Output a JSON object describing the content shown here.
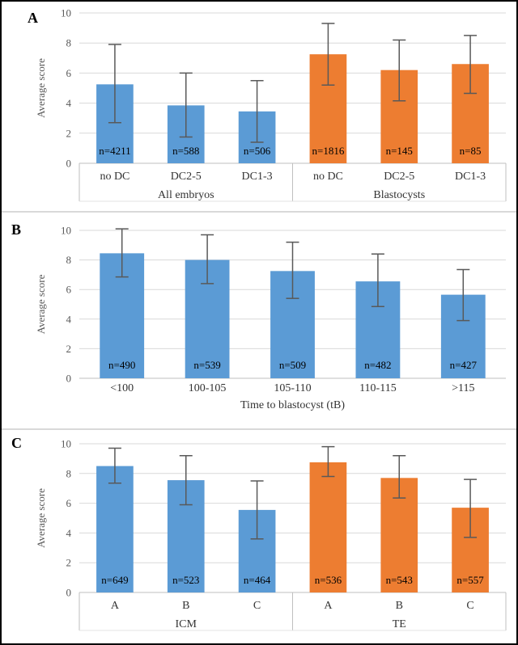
{
  "styles": {
    "bar_blue": "#5B9BD5",
    "bar_orange": "#ED7D31",
    "error_bar": "#595959",
    "gridline": "#D9D9D9",
    "axis_line": "#BFBFBF",
    "divider_line": "#BFBFBF",
    "bottom_line": "#E3E3E3",
    "tick_text": "#595959",
    "ylabel_text": "#595959",
    "category_text": "#333333",
    "group_text": "#333333",
    "n_text": "#000000",
    "panel_letter": "#000000",
    "separator": "#D9D9D9",
    "frame": "#000000"
  },
  "chart_data": [
    {
      "panel": "A",
      "type": "bar",
      "ylabel": "Average score",
      "xlabel": "",
      "ylim": [
        0,
        10
      ],
      "yticks": [
        0,
        2,
        4,
        6,
        8,
        10
      ],
      "grid": true,
      "legend": "none",
      "groups": [
        {
          "label": "All embryos",
          "color_key": "bar_blue",
          "bars": [
            {
              "category": "no DC",
              "value": 5.25,
              "err_low": 2.7,
              "err_high": 7.9,
              "n_label": "n=4211"
            },
            {
              "category": "DC2-5",
              "value": 3.85,
              "err_low": 1.75,
              "err_high": 6.0,
              "n_label": "n=588"
            },
            {
              "category": "DC1-3",
              "value": 3.45,
              "err_low": 1.4,
              "err_high": 5.5,
              "n_label": "n=506"
            }
          ]
        },
        {
          "label": "Blastocysts",
          "color_key": "bar_orange",
          "bars": [
            {
              "category": "no DC",
              "value": 7.25,
              "err_low": 5.2,
              "err_high": 9.3,
              "n_label": "n=1816"
            },
            {
              "category": "DC2-5",
              "value": 6.2,
              "err_low": 4.15,
              "err_high": 8.2,
              "n_label": "n=145"
            },
            {
              "category": "DC1-3",
              "value": 6.6,
              "err_low": 4.65,
              "err_high": 8.5,
              "n_label": "n=85"
            }
          ]
        }
      ]
    },
    {
      "panel": "B",
      "type": "bar",
      "ylabel": "Average score",
      "xlabel": "Time to blastocyst (tB)",
      "ylim": [
        0,
        10
      ],
      "yticks": [
        0,
        2,
        4,
        6,
        8,
        10
      ],
      "grid": true,
      "legend": "none",
      "groups": [
        {
          "label": "",
          "color_key": "bar_blue",
          "bars": [
            {
              "category": "<100",
              "value": 8.45,
              "err_low": 6.85,
              "err_high": 10.1,
              "n_label": "n=490"
            },
            {
              "category": "100-105",
              "value": 8.0,
              "err_low": 6.4,
              "err_high": 9.7,
              "n_label": "n=539"
            },
            {
              "category": "105-110",
              "value": 7.25,
              "err_low": 5.4,
              "err_high": 9.2,
              "n_label": "n=509"
            },
            {
              "category": "110-115",
              "value": 6.55,
              "err_low": 4.85,
              "err_high": 8.4,
              "n_label": "n=482"
            },
            {
              "category": ">115",
              "value": 5.65,
              "err_low": 3.9,
              "err_high": 7.35,
              "n_label": "n=427"
            }
          ]
        }
      ]
    },
    {
      "panel": "C",
      "type": "bar",
      "ylabel": "Average score",
      "xlabel": "",
      "ylim": [
        0,
        10
      ],
      "yticks": [
        0,
        2,
        4,
        6,
        8,
        10
      ],
      "grid": true,
      "legend": "none",
      "groups": [
        {
          "label": "ICM",
          "color_key": "bar_blue",
          "bars": [
            {
              "category": "A",
              "value": 8.5,
              "err_low": 7.35,
              "err_high": 9.7,
              "n_label": "n=649"
            },
            {
              "category": "B",
              "value": 7.55,
              "err_low": 5.9,
              "err_high": 9.2,
              "n_label": "n=523"
            },
            {
              "category": "C",
              "value": 5.55,
              "err_low": 3.6,
              "err_high": 7.5,
              "n_label": "n=464"
            }
          ]
        },
        {
          "label": "TE",
          "color_key": "bar_orange",
          "bars": [
            {
              "category": "A",
              "value": 8.75,
              "err_low": 7.8,
              "err_high": 9.8,
              "n_label": "n=536"
            },
            {
              "category": "B",
              "value": 7.7,
              "err_low": 6.35,
              "err_high": 9.2,
              "n_label": "n=543"
            },
            {
              "category": "C",
              "value": 5.7,
              "err_low": 3.7,
              "err_high": 7.6,
              "n_label": "n=557"
            }
          ]
        }
      ]
    }
  ]
}
